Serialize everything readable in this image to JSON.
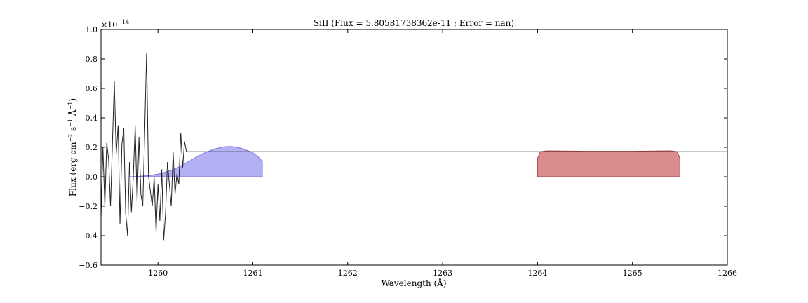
{
  "chart_data": {
    "type": "line",
    "title": "SiII (Flux = 5.80581738362e-11 ; Error = nan)",
    "xlabel": "Wavelength (Å)",
    "ylabel_parts": {
      "pre": "Flux (erg cm",
      "exp1": "−2",
      "mid1": " s",
      "exp2": "−1",
      "mid2": " Å",
      "exp3": "−1",
      "post": ")"
    },
    "offset_text": {
      "base": "×10",
      "exp": "−14"
    },
    "xlim": [
      1259.4,
      1266.0
    ],
    "ylim": [
      -0.6,
      1.0
    ],
    "xticks": [
      1260,
      1261,
      1262,
      1263,
      1264,
      1265,
      1266
    ],
    "xtick_labels": [
      "1260",
      "1261",
      "1262",
      "1263",
      "1264",
      "1265",
      "1266"
    ],
    "yticks": [
      -0.6,
      -0.4,
      -0.2,
      0.0,
      0.2,
      0.4,
      0.6,
      0.8,
      1.0
    ],
    "ytick_labels": [
      "−0.6",
      "−0.4",
      "−0.2",
      "0.0",
      "0.2",
      "0.4",
      "0.6",
      "0.8",
      "1.0"
    ],
    "grid": false,
    "colors": {
      "spectrum": "#222222",
      "blue_fill": "#b3b0f3",
      "blue_edge": "#7a76e0",
      "red_fill": "#d98d8d",
      "red_edge": "#b24545",
      "continuum": "#222222"
    },
    "series": [
      {
        "kind": "spectrum_line",
        "x": [
          1259.4,
          1259.42,
          1259.44,
          1259.46,
          1259.48,
          1259.5,
          1259.52,
          1259.54,
          1259.56,
          1259.58,
          1259.6,
          1259.62,
          1259.64,
          1259.66,
          1259.68,
          1259.7,
          1259.72,
          1259.74,
          1259.76,
          1259.78,
          1259.8,
          1259.82,
          1259.84,
          1259.86,
          1259.88,
          1259.9,
          1259.92,
          1259.94,
          1259.96,
          1259.98,
          1260.0,
          1260.02,
          1260.04,
          1260.06,
          1260.08,
          1260.1,
          1260.12,
          1260.14,
          1260.16,
          1260.18,
          1260.2,
          1260.22,
          1260.24,
          1260.26,
          1260.28,
          1260.3,
          1260.32,
          1266.0
        ],
        "y": [
          -0.28,
          0.2,
          -0.2,
          0.23,
          0.12,
          -0.2,
          0.22,
          0.65,
          0.15,
          0.35,
          -0.32,
          0.22,
          0.33,
          -0.25,
          -0.4,
          0.1,
          -0.24,
          0.0,
          0.35,
          -0.17,
          0.27,
          -0.12,
          -0.2,
          0.3,
          0.84,
          0.01,
          -0.1,
          -0.2,
          0.0,
          -0.38,
          -0.05,
          -0.3,
          0.05,
          -0.43,
          -0.25,
          0.1,
          -0.05,
          -0.2,
          0.17,
          -0.12,
          0.02,
          -0.05,
          0.3,
          0.06,
          0.24,
          0.17,
          0.17,
          0.17
        ]
      },
      {
        "kind": "blue_filled_profile",
        "x": [
          1259.7,
          1259.8,
          1259.9,
          1260.0,
          1260.1,
          1260.2,
          1260.3,
          1260.4,
          1260.5,
          1260.6,
          1260.7,
          1260.75,
          1260.8,
          1260.9,
          1261.0,
          1261.05,
          1261.1
        ],
        "y": [
          0.0,
          0.003,
          0.008,
          0.018,
          0.035,
          0.06,
          0.095,
          0.132,
          0.165,
          0.19,
          0.204,
          0.206,
          0.204,
          0.19,
          0.163,
          0.14,
          0.105
        ]
      },
      {
        "kind": "red_filled_region",
        "x": [
          1264.0,
          1264.03,
          1264.1,
          1264.5,
          1265.0,
          1265.4,
          1265.47,
          1265.5
        ],
        "y": [
          0.125,
          0.17,
          0.176,
          0.173,
          0.173,
          0.176,
          0.17,
          0.125
        ]
      }
    ]
  }
}
